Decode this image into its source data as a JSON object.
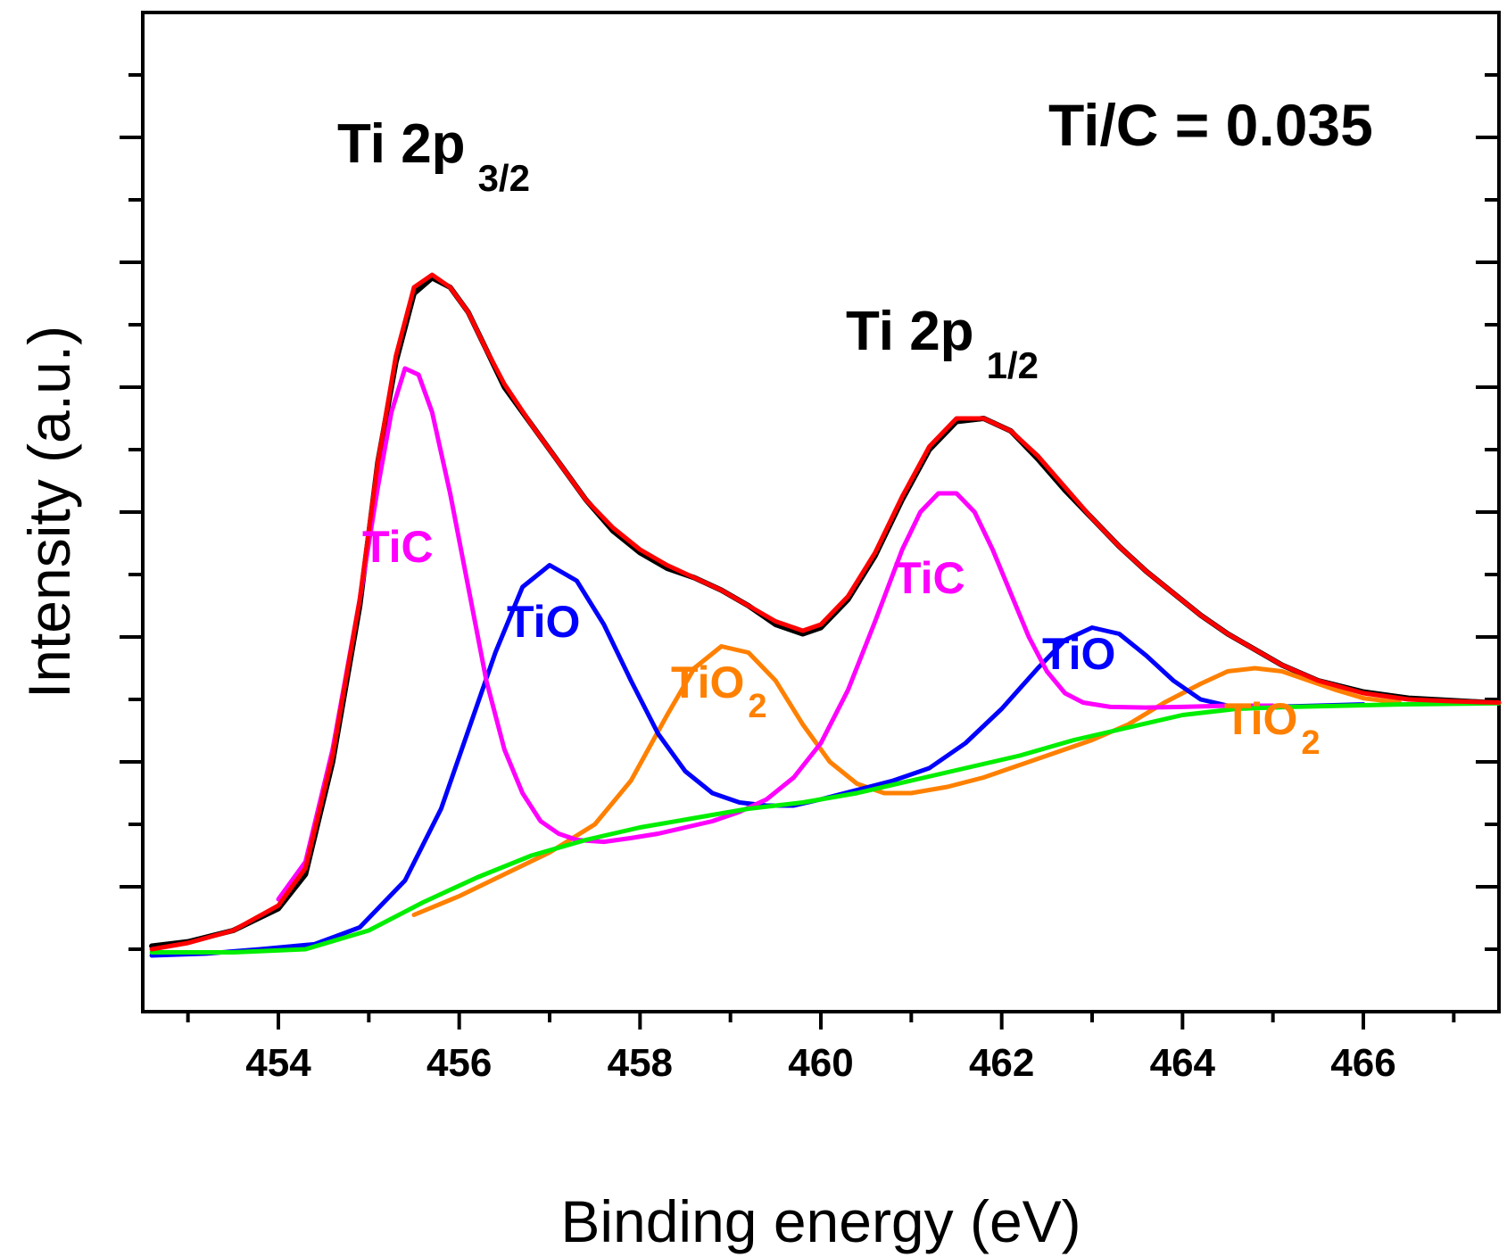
{
  "chart_data": {
    "type": "line",
    "title": "",
    "xlabel": "Binding energy (eV)",
    "ylabel": "Intensity (a.u.)",
    "xlim": [
      452.5,
      467.5
    ],
    "ylim": [
      0,
      16
    ],
    "xticks": [
      454,
      456,
      458,
      460,
      462,
      464,
      466
    ],
    "x_tick_labels": [
      "454",
      "456",
      "458",
      "460",
      "462",
      "464",
      "466"
    ],
    "y_tick_labels_shown": false,
    "grid": false,
    "legend": "none",
    "annotations": {
      "peak1": {
        "main": "Ti 2p",
        "sub": "3/2"
      },
      "peak2": {
        "main": "Ti 2p",
        "sub": "1/2"
      },
      "ratio": "Ti/C = 0.035",
      "tic1": "TiC",
      "tio1": "TiO",
      "tio2_1": {
        "main": "TiO",
        "sub": "2"
      },
      "tic2": "TiC",
      "tio2": "TiO",
      "tio2_2": {
        "main": "TiO",
        "sub": "2"
      }
    },
    "colors": {
      "raw": "#000000",
      "envelope": "#ff0000",
      "TiC": "#ff00ff",
      "TiO": "#0000ff",
      "TiO2": "#ff8000",
      "background": "#00ee00"
    },
    "series": [
      {
        "key": "raw",
        "color": "#000000",
        "points": [
          [
            452.6,
            1.05
          ],
          [
            453.0,
            1.12
          ],
          [
            453.5,
            1.3
          ],
          [
            454.0,
            1.65
          ],
          [
            454.3,
            2.2
          ],
          [
            454.6,
            4.0
          ],
          [
            454.9,
            6.5
          ],
          [
            455.1,
            8.8
          ],
          [
            455.3,
            10.4
          ],
          [
            455.5,
            11.5
          ],
          [
            455.7,
            11.75
          ],
          [
            455.9,
            11.6
          ],
          [
            456.1,
            11.2
          ],
          [
            456.3,
            10.6
          ],
          [
            456.5,
            10.0
          ],
          [
            456.8,
            9.4
          ],
          [
            457.1,
            8.8
          ],
          [
            457.4,
            8.2
          ],
          [
            457.7,
            7.7
          ],
          [
            458.0,
            7.35
          ],
          [
            458.3,
            7.1
          ],
          [
            458.6,
            6.95
          ],
          [
            458.9,
            6.75
          ],
          [
            459.2,
            6.5
          ],
          [
            459.5,
            6.2
          ],
          [
            459.8,
            6.05
          ],
          [
            460.0,
            6.15
          ],
          [
            460.3,
            6.6
          ],
          [
            460.6,
            7.3
          ],
          [
            460.9,
            8.2
          ],
          [
            461.2,
            9.0
          ],
          [
            461.5,
            9.45
          ],
          [
            461.8,
            9.5
          ],
          [
            462.1,
            9.3
          ],
          [
            462.4,
            8.85
          ],
          [
            462.7,
            8.35
          ],
          [
            463.0,
            7.9
          ],
          [
            463.3,
            7.45
          ],
          [
            463.6,
            7.05
          ],
          [
            463.9,
            6.7
          ],
          [
            464.2,
            6.35
          ],
          [
            464.5,
            6.05
          ],
          [
            464.8,
            5.8
          ],
          [
            465.1,
            5.55
          ],
          [
            465.5,
            5.3
          ],
          [
            466.0,
            5.12
          ],
          [
            466.5,
            5.02
          ],
          [
            467.0,
            4.98
          ],
          [
            467.4,
            4.95
          ]
        ]
      },
      {
        "key": "envelope",
        "color": "#ff0000",
        "points": [
          [
            452.6,
            1.0
          ],
          [
            453.0,
            1.1
          ],
          [
            453.5,
            1.3
          ],
          [
            454.0,
            1.7
          ],
          [
            454.3,
            2.3
          ],
          [
            454.6,
            4.1
          ],
          [
            454.9,
            6.6
          ],
          [
            455.1,
            8.8
          ],
          [
            455.3,
            10.5
          ],
          [
            455.5,
            11.6
          ],
          [
            455.7,
            11.8
          ],
          [
            455.9,
            11.6
          ],
          [
            456.1,
            11.2
          ],
          [
            456.3,
            10.6
          ],
          [
            456.5,
            10.05
          ],
          [
            456.8,
            9.4
          ],
          [
            457.1,
            8.8
          ],
          [
            457.4,
            8.2
          ],
          [
            457.7,
            7.75
          ],
          [
            458.0,
            7.4
          ],
          [
            458.3,
            7.15
          ],
          [
            458.6,
            6.95
          ],
          [
            458.9,
            6.75
          ],
          [
            459.2,
            6.5
          ],
          [
            459.5,
            6.25
          ],
          [
            459.8,
            6.1
          ],
          [
            460.0,
            6.2
          ],
          [
            460.3,
            6.65
          ],
          [
            460.6,
            7.35
          ],
          [
            460.9,
            8.25
          ],
          [
            461.2,
            9.05
          ],
          [
            461.5,
            9.5
          ],
          [
            461.8,
            9.5
          ],
          [
            462.1,
            9.3
          ],
          [
            462.4,
            8.9
          ],
          [
            462.7,
            8.4
          ],
          [
            463.0,
            7.9
          ],
          [
            463.3,
            7.45
          ],
          [
            463.6,
            7.05
          ],
          [
            463.9,
            6.7
          ],
          [
            464.2,
            6.35
          ],
          [
            464.5,
            6.05
          ],
          [
            464.8,
            5.8
          ],
          [
            465.1,
            5.55
          ],
          [
            465.5,
            5.3
          ],
          [
            466.0,
            5.1
          ],
          [
            466.5,
            5.0
          ],
          [
            467.0,
            4.97
          ],
          [
            467.5,
            4.95
          ]
        ]
      },
      {
        "key": "TiC",
        "color": "#ff00ff",
        "points": [
          [
            454.0,
            1.8
          ],
          [
            454.3,
            2.4
          ],
          [
            454.6,
            4.2
          ],
          [
            454.9,
            6.6
          ],
          [
            455.1,
            8.4
          ],
          [
            455.25,
            9.6
          ],
          [
            455.4,
            10.3
          ],
          [
            455.55,
            10.2
          ],
          [
            455.7,
            9.6
          ],
          [
            455.9,
            8.3
          ],
          [
            456.1,
            6.8
          ],
          [
            456.3,
            5.3
          ],
          [
            456.5,
            4.2
          ],
          [
            456.7,
            3.5
          ],
          [
            456.9,
            3.05
          ],
          [
            457.1,
            2.85
          ],
          [
            457.3,
            2.75
          ],
          [
            457.6,
            2.72
          ],
          [
            457.9,
            2.78
          ],
          [
            458.2,
            2.85
          ],
          [
            458.5,
            2.95
          ],
          [
            458.8,
            3.05
          ],
          [
            459.1,
            3.2
          ],
          [
            459.4,
            3.4
          ],
          [
            459.7,
            3.75
          ],
          [
            460.0,
            4.3
          ],
          [
            460.3,
            5.15
          ],
          [
            460.6,
            6.25
          ],
          [
            460.9,
            7.4
          ],
          [
            461.1,
            8.0
          ],
          [
            461.3,
            8.3
          ],
          [
            461.5,
            8.3
          ],
          [
            461.7,
            8.0
          ],
          [
            461.9,
            7.4
          ],
          [
            462.1,
            6.7
          ],
          [
            462.3,
            6.0
          ],
          [
            462.5,
            5.45
          ],
          [
            462.7,
            5.1
          ],
          [
            462.9,
            4.95
          ],
          [
            463.2,
            4.88
          ],
          [
            463.6,
            4.87
          ],
          [
            464.0,
            4.88
          ],
          [
            464.5,
            4.9
          ],
          [
            465.0,
            4.9
          ]
        ]
      },
      {
        "key": "TiO",
        "color": "#0000ff",
        "points": [
          [
            452.6,
            0.9
          ],
          [
            453.2,
            0.93
          ],
          [
            453.8,
            1.0
          ],
          [
            454.4,
            1.08
          ],
          [
            454.9,
            1.35
          ],
          [
            455.4,
            2.1
          ],
          [
            455.8,
            3.25
          ],
          [
            456.1,
            4.5
          ],
          [
            456.4,
            5.75
          ],
          [
            456.7,
            6.8
          ],
          [
            457.0,
            7.15
          ],
          [
            457.3,
            6.9
          ],
          [
            457.6,
            6.2
          ],
          [
            457.9,
            5.3
          ],
          [
            458.2,
            4.45
          ],
          [
            458.5,
            3.85
          ],
          [
            458.8,
            3.5
          ],
          [
            459.1,
            3.35
          ],
          [
            459.4,
            3.3
          ],
          [
            459.7,
            3.3
          ],
          [
            460.0,
            3.4
          ],
          [
            460.4,
            3.55
          ],
          [
            460.8,
            3.7
          ],
          [
            461.2,
            3.9
          ],
          [
            461.6,
            4.3
          ],
          [
            462.0,
            4.85
          ],
          [
            462.4,
            5.5
          ],
          [
            462.7,
            5.95
          ],
          [
            463.0,
            6.15
          ],
          [
            463.3,
            6.05
          ],
          [
            463.6,
            5.7
          ],
          [
            463.9,
            5.3
          ],
          [
            464.2,
            5.0
          ],
          [
            464.5,
            4.9
          ],
          [
            465.0,
            4.88
          ],
          [
            465.5,
            4.9
          ],
          [
            466.0,
            4.92
          ]
        ]
      },
      {
        "key": "TiO2",
        "color": "#ff8000",
        "points": [
          [
            455.5,
            1.55
          ],
          [
            456.0,
            1.85
          ],
          [
            456.5,
            2.2
          ],
          [
            457.0,
            2.55
          ],
          [
            457.5,
            3.0
          ],
          [
            457.9,
            3.7
          ],
          [
            458.3,
            4.75
          ],
          [
            458.6,
            5.5
          ],
          [
            458.9,
            5.85
          ],
          [
            459.2,
            5.75
          ],
          [
            459.5,
            5.3
          ],
          [
            459.8,
            4.6
          ],
          [
            460.1,
            4.0
          ],
          [
            460.4,
            3.65
          ],
          [
            460.7,
            3.5
          ],
          [
            461.0,
            3.5
          ],
          [
            461.4,
            3.6
          ],
          [
            461.8,
            3.75
          ],
          [
            462.2,
            3.95
          ],
          [
            462.6,
            4.15
          ],
          [
            463.0,
            4.35
          ],
          [
            463.4,
            4.6
          ],
          [
            463.8,
            4.95
          ],
          [
            464.2,
            5.25
          ],
          [
            464.5,
            5.45
          ],
          [
            464.8,
            5.5
          ],
          [
            465.1,
            5.45
          ],
          [
            465.4,
            5.3
          ],
          [
            465.7,
            5.15
          ],
          [
            466.0,
            5.02
          ],
          [
            466.4,
            4.95
          ]
        ]
      },
      {
        "key": "background",
        "color": "#00ee00",
        "points": [
          [
            452.6,
            0.95
          ],
          [
            453.5,
            0.95
          ],
          [
            454.3,
            1.0
          ],
          [
            455.0,
            1.3
          ],
          [
            455.6,
            1.75
          ],
          [
            456.2,
            2.15
          ],
          [
            456.8,
            2.5
          ],
          [
            457.4,
            2.75
          ],
          [
            458.0,
            2.95
          ],
          [
            458.6,
            3.1
          ],
          [
            459.2,
            3.25
          ],
          [
            459.8,
            3.35
          ],
          [
            460.4,
            3.5
          ],
          [
            461.0,
            3.7
          ],
          [
            461.6,
            3.9
          ],
          [
            462.2,
            4.1
          ],
          [
            462.8,
            4.35
          ],
          [
            463.4,
            4.55
          ],
          [
            464.0,
            4.75
          ],
          [
            464.6,
            4.85
          ],
          [
            465.2,
            4.88
          ],
          [
            465.8,
            4.9
          ],
          [
            466.4,
            4.92
          ],
          [
            467.0,
            4.93
          ],
          [
            467.5,
            4.94
          ]
        ]
      }
    ]
  }
}
